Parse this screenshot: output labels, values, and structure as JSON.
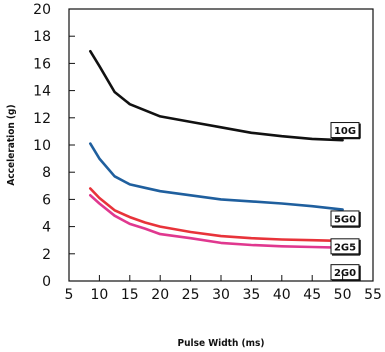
{
  "chart_data": {
    "type": "line",
    "title": "",
    "xlabel": "Pulse Width (ms)",
    "ylabel": "Acceleration (g)",
    "xlim": [
      5,
      55
    ],
    "ylim": [
      0,
      20
    ],
    "xticks": [
      5,
      10,
      15,
      20,
      25,
      30,
      35,
      40,
      45,
      50,
      55
    ],
    "yticks": [
      0,
      2,
      4,
      6,
      8,
      10,
      12,
      14,
      16,
      18,
      20
    ],
    "grid": false,
    "series": [
      {
        "name": "10G",
        "color": "#111111",
        "points": [
          [
            8.5,
            16.9
          ],
          [
            10,
            15.8
          ],
          [
            12.5,
            13.9
          ],
          [
            15,
            13.0
          ],
          [
            20,
            12.1
          ],
          [
            25,
            11.7
          ],
          [
            30,
            11.3
          ],
          [
            35,
            10.9
          ],
          [
            40,
            10.65
          ],
          [
            45,
            10.45
          ],
          [
            50,
            10.35
          ]
        ]
      },
      {
        "name": "5G0",
        "color": "#1f5f9e",
        "points": [
          [
            8.5,
            10.1
          ],
          [
            10,
            9.0
          ],
          [
            12.5,
            7.7
          ],
          [
            15,
            7.1
          ],
          [
            17.5,
            6.85
          ],
          [
            20,
            6.6
          ],
          [
            25,
            6.3
          ],
          [
            30,
            6.0
          ],
          [
            35,
            5.85
          ],
          [
            40,
            5.7
          ],
          [
            45,
            5.5
          ],
          [
            50,
            5.25
          ]
        ]
      },
      {
        "name": "2G5",
        "color": "#e8333a",
        "points": [
          [
            8.5,
            6.8
          ],
          [
            10,
            6.1
          ],
          [
            12.5,
            5.2
          ],
          [
            15,
            4.7
          ],
          [
            17.5,
            4.3
          ],
          [
            20,
            4.0
          ],
          [
            25,
            3.6
          ],
          [
            30,
            3.3
          ],
          [
            35,
            3.15
          ],
          [
            40,
            3.05
          ],
          [
            45,
            3.0
          ],
          [
            50,
            2.95
          ]
        ]
      },
      {
        "name": "2G0",
        "color": "#e0388f",
        "points": [
          [
            8.5,
            6.3
          ],
          [
            10,
            5.7
          ],
          [
            12.5,
            4.8
          ],
          [
            15,
            4.2
          ],
          [
            17.5,
            3.85
          ],
          [
            20,
            3.45
          ],
          [
            25,
            3.15
          ],
          [
            30,
            2.8
          ],
          [
            35,
            2.65
          ],
          [
            40,
            2.55
          ],
          [
            45,
            2.5
          ],
          [
            50,
            2.45
          ]
        ]
      }
    ],
    "series_labels": [
      {
        "text": "10G",
        "anchor_y": 11.1
      },
      {
        "text": "5G0",
        "anchor_y": 4.6
      },
      {
        "text": "2G5",
        "anchor_y": 2.55
      },
      {
        "text": "2G0",
        "anchor_y": 0.65
      }
    ]
  }
}
